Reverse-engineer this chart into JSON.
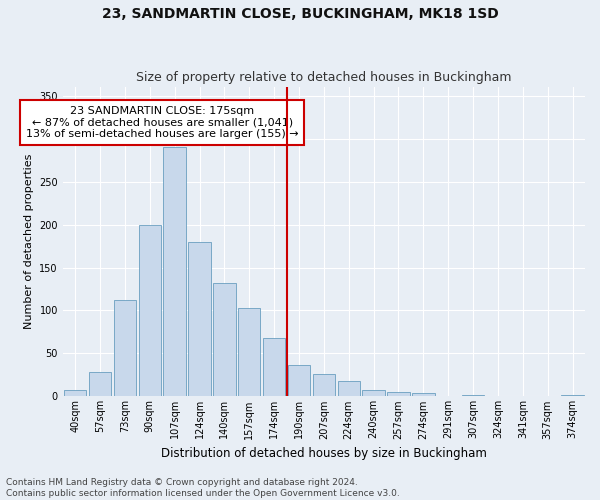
{
  "title": "23, SANDMARTIN CLOSE, BUCKINGHAM, MK18 1SD",
  "subtitle": "Size of property relative to detached houses in Buckingham",
  "xlabel": "Distribution of detached houses by size in Buckingham",
  "ylabel": "Number of detached properties",
  "categories": [
    "40sqm",
    "57sqm",
    "73sqm",
    "90sqm",
    "107sqm",
    "124sqm",
    "140sqm",
    "157sqm",
    "174sqm",
    "190sqm",
    "207sqm",
    "224sqm",
    "240sqm",
    "257sqm",
    "274sqm",
    "291sqm",
    "307sqm",
    "324sqm",
    "341sqm",
    "357sqm",
    "374sqm"
  ],
  "values": [
    7,
    28,
    112,
    200,
    290,
    180,
    132,
    103,
    68,
    36,
    26,
    18,
    8,
    5,
    4,
    1,
    2,
    0,
    1,
    0,
    2
  ],
  "bar_color": "#c8d8eb",
  "bar_edge_color": "#6a9fc0",
  "vertical_line_color": "#cc0000",
  "annotation_text": "23 SANDMARTIN CLOSE: 175sqm\n← 87% of detached houses are smaller (1,041)\n13% of semi-detached houses are larger (155) →",
  "annotation_box_facecolor": "#ffffff",
  "annotation_box_edgecolor": "#cc0000",
  "ylim": [
    0,
    360
  ],
  "yticks": [
    0,
    50,
    100,
    150,
    200,
    250,
    300,
    350
  ],
  "background_color": "#e8eef5",
  "grid_color": "#ffffff",
  "footnote": "Contains HM Land Registry data © Crown copyright and database right 2024.\nContains public sector information licensed under the Open Government Licence v3.0.",
  "title_fontsize": 10,
  "subtitle_fontsize": 9,
  "xlabel_fontsize": 8.5,
  "ylabel_fontsize": 8,
  "tick_fontsize": 7,
  "annotation_fontsize": 8,
  "footnote_fontsize": 6.5
}
